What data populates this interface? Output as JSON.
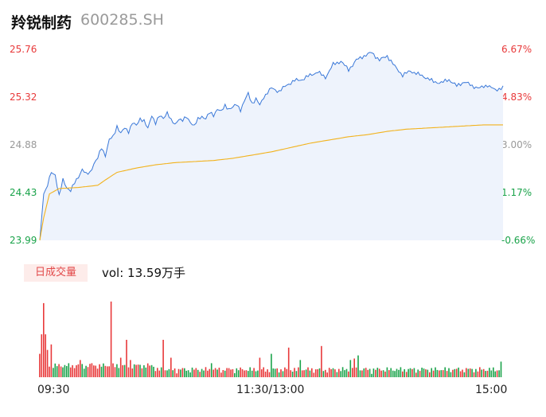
{
  "header": {
    "name": "羚锐制药",
    "code": "600285.SH"
  },
  "volume_panel": {
    "badge": "日成交量",
    "label": "vol: 13.59万手"
  },
  "colors": {
    "up": "#e8393a",
    "down": "#1aa34a",
    "neutral": "#999999",
    "price_line": "#3a78d8",
    "avg_line": "#f2b21c",
    "fill": "#eef3fc"
  },
  "chart_data": [
    {
      "type": "line",
      "title": "",
      "x_ticks": [
        "09:30",
        "11:30/13:00",
        "15:00"
      ],
      "ylim": [
        23.99,
        25.76
      ],
      "y_left_ticks": [
        "25.76",
        "25.32",
        "24.88",
        "24.43",
        "23.99"
      ],
      "y_right_ticks": [
        "6.67%",
        "4.83%",
        "3.00%",
        "1.17%",
        "-0.66%"
      ],
      "series": [
        {
          "key": "price",
          "anchor_minute": [
            0,
            2,
            4,
            6,
            8,
            10,
            12,
            14,
            16,
            18,
            20,
            22,
            24,
            26,
            28,
            30,
            32,
            34,
            36,
            38,
            40,
            42,
            44,
            46,
            48,
            50,
            52,
            54,
            56,
            58,
            60,
            62,
            64,
            66,
            68,
            70,
            72,
            74,
            76,
            78,
            80,
            82,
            84,
            86,
            88,
            90,
            92,
            94,
            96,
            98,
            100,
            102,
            104,
            106,
            108,
            110,
            112,
            114,
            116,
            118,
            120,
            124,
            128,
            132,
            136,
            140,
            144,
            148,
            152,
            156,
            160,
            164,
            168,
            172,
            176,
            180,
            184,
            188,
            192,
            196,
            200,
            204,
            208,
            212,
            216,
            220,
            224,
            228,
            232,
            236,
            240
          ],
          "anchor_price": [
            23.99,
            24.42,
            24.5,
            24.62,
            24.6,
            24.4,
            24.55,
            24.48,
            24.45,
            24.52,
            24.58,
            24.65,
            24.6,
            24.62,
            24.7,
            24.75,
            24.85,
            24.78,
            24.92,
            24.95,
            25.05,
            24.98,
            25.03,
            25.0,
            25.08,
            25.05,
            25.12,
            25.1,
            25.02,
            25.15,
            25.08,
            25.14,
            25.12,
            25.18,
            25.1,
            25.06,
            25.12,
            25.1,
            25.13,
            25.09,
            25.05,
            25.11,
            25.14,
            25.12,
            25.17,
            25.15,
            25.21,
            25.18,
            25.24,
            25.21,
            25.22,
            25.25,
            25.2,
            25.28,
            25.35,
            25.26,
            25.3,
            25.24,
            25.32,
            25.36,
            25.4,
            25.37,
            25.43,
            25.47,
            25.48,
            25.52,
            25.55,
            25.5,
            25.62,
            25.65,
            25.57,
            25.66,
            25.7,
            25.73,
            25.66,
            25.7,
            25.6,
            25.52,
            25.56,
            25.53,
            25.5,
            25.46,
            25.45,
            25.48,
            25.42,
            25.46,
            25.42,
            25.4,
            25.43,
            25.38,
            25.41
          ]
        },
        {
          "key": "average",
          "anchor_minute": [
            0,
            2,
            5,
            10,
            20,
            30,
            34,
            40,
            50,
            60,
            70,
            80,
            90,
            100,
            110,
            120,
            130,
            140,
            150,
            160,
            170,
            180,
            190,
            200,
            210,
            220,
            230,
            240
          ],
          "anchor_price": [
            23.99,
            24.2,
            24.42,
            24.47,
            24.48,
            24.5,
            24.55,
            24.62,
            24.66,
            24.69,
            24.71,
            24.72,
            24.73,
            24.75,
            24.78,
            24.81,
            24.85,
            24.89,
            24.92,
            24.95,
            24.97,
            25.0,
            25.02,
            25.03,
            25.04,
            25.05,
            25.06,
            25.06
          ]
        }
      ]
    },
    {
      "type": "bar",
      "title": "",
      "ylabel": "",
      "volume_spikes": [
        {
          "minute": 0,
          "value": 30,
          "dir": "up"
        },
        {
          "minute": 1,
          "value": 55,
          "dir": "up"
        },
        {
          "minute": 2,
          "value": 95,
          "dir": "up"
        },
        {
          "minute": 3,
          "value": 55,
          "dir": "up"
        },
        {
          "minute": 4,
          "value": 35,
          "dir": "up"
        },
        {
          "minute": 6,
          "value": 42,
          "dir": "up"
        },
        {
          "minute": 21,
          "value": 22,
          "dir": "up"
        },
        {
          "minute": 27,
          "value": 18,
          "dir": "up"
        },
        {
          "minute": 37,
          "value": 97,
          "dir": "up"
        },
        {
          "minute": 42,
          "value": 25,
          "dir": "up"
        },
        {
          "minute": 45,
          "value": 48,
          "dir": "up"
        },
        {
          "minute": 47,
          "value": 22,
          "dir": "up"
        },
        {
          "minute": 64,
          "value": 48,
          "dir": "up"
        },
        {
          "minute": 68,
          "value": 25,
          "dir": "up"
        },
        {
          "minute": 89,
          "value": 18,
          "dir": "down"
        },
        {
          "minute": 114,
          "value": 25,
          "dir": "up"
        },
        {
          "minute": 120,
          "value": 30,
          "dir": "down"
        },
        {
          "minute": 129,
          "value": 38,
          "dir": "up"
        },
        {
          "minute": 135,
          "value": 22,
          "dir": "down"
        },
        {
          "minute": 146,
          "value": 40,
          "dir": "up"
        },
        {
          "minute": 161,
          "value": 22,
          "dir": "down"
        },
        {
          "minute": 163,
          "value": 24,
          "dir": "up"
        },
        {
          "minute": 165,
          "value": 28,
          "dir": "down"
        },
        {
          "minute": 239,
          "value": 20,
          "dir": "down"
        }
      ]
    }
  ]
}
